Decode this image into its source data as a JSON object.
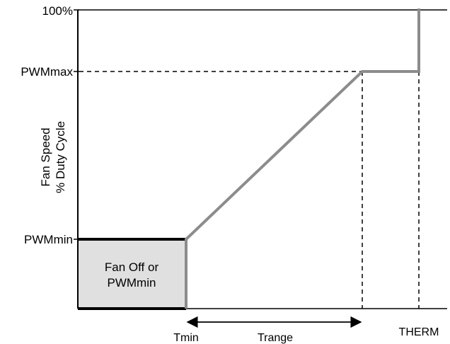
{
  "diagram": {
    "y_axis_labels": {
      "top": "100%",
      "pwm_max": "PWMmax",
      "pwm_min": "PWMmin"
    },
    "y_axis_title": {
      "line1": "Fan Speed",
      "line2": "% Duty Cycle"
    },
    "x_axis_labels": {
      "tmin": "Tmin",
      "trange": "Trange",
      "therm": "THERM"
    },
    "region_label": {
      "line1": "Fan Off or",
      "line2": "PWMmin"
    },
    "colors": {
      "curve": "#8c8c8c",
      "region_fill": "#e0e0e0",
      "axis": "#000000"
    }
  }
}
